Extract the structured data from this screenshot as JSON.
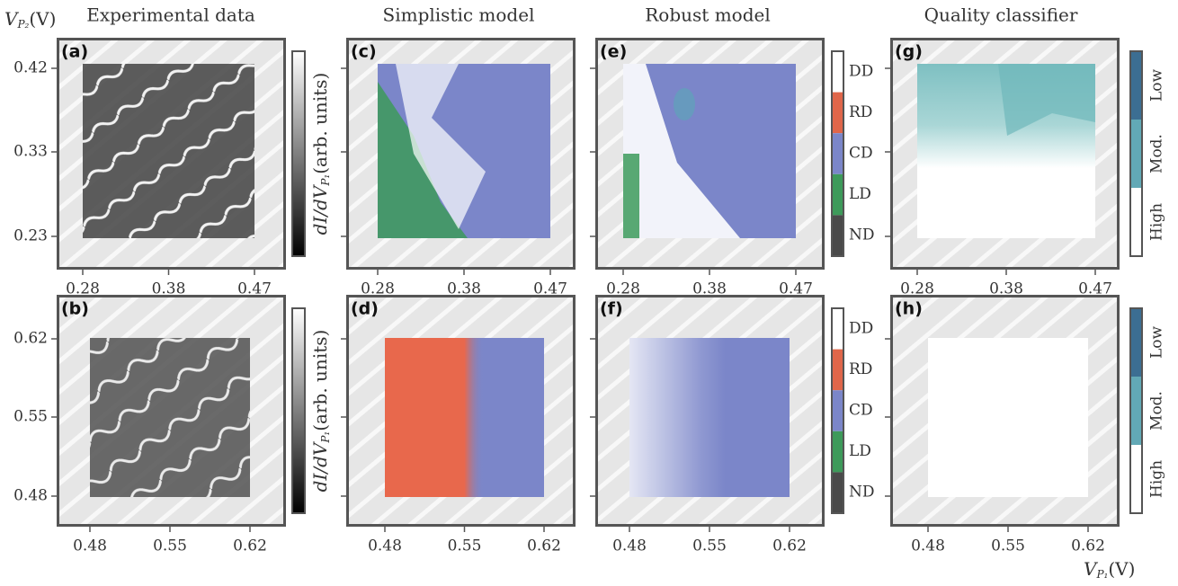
{
  "column_titles": [
    "Experimental data",
    "Simplistic model",
    "Robust model",
    "Quality classifier"
  ],
  "y_axis_label": {
    "symbol": "V",
    "subscript": "P₂",
    "unit": "(V)"
  },
  "x_axis_label": {
    "symbol": "V",
    "subscript": "P₁",
    "unit": "(V)"
  },
  "colorbar_label": {
    "symbol": "dI/dV",
    "subscript": "P₁",
    "unit": "(arb. units)"
  },
  "rows": [
    {
      "panels": [
        "(a)",
        "(c)",
        "(e)",
        "(g)"
      ],
      "y_ticks": [
        "0.42",
        "0.33",
        "0.23"
      ],
      "x_ticks": [
        "0.28",
        "0.38",
        "0.47"
      ]
    },
    {
      "panels": [
        "(b)",
        "(d)",
        "(f)",
        "(h)"
      ],
      "y_ticks": [
        "0.62",
        "0.55",
        "0.48"
      ],
      "x_ticks": [
        "0.48",
        "0.55",
        "0.62"
      ]
    }
  ],
  "classes": [
    {
      "label": "DD",
      "color": "#ffffff"
    },
    {
      "label": "RD",
      "color": "#e0664a"
    },
    {
      "label": "CD",
      "color": "#7b86c9"
    },
    {
      "label": "LD",
      "color": "#3d9a5a"
    },
    {
      "label": "ND",
      "color": "#4a4a4a"
    }
  ],
  "quality": [
    {
      "label": "Low",
      "color": "#3c6e92"
    },
    {
      "label": "Mod.",
      "color": "#62a9b6"
    },
    {
      "label": "High",
      "color": "#ffffff"
    }
  ]
}
